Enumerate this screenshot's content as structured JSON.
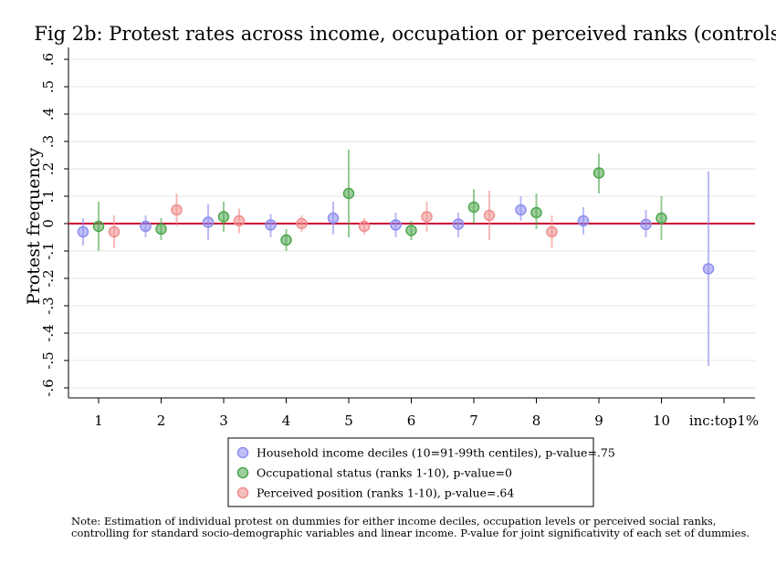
{
  "chart_data": {
    "type": "scatter",
    "title": "Fig 2b: Protest rates across income, occupation or perceived ranks (controls)",
    "ylabel": "Protest frequency",
    "xlabel": "",
    "ylim": [
      -0.6,
      0.6
    ],
    "y_ticks": [
      0.6,
      0.5,
      0.4,
      0.3,
      0.2,
      0.1,
      0,
      -0.1,
      -0.2,
      -0.3,
      -0.4,
      -0.5,
      -0.6
    ],
    "y_tick_labels": [
      ".6",
      ".5",
      ".4",
      ".3",
      ".2",
      ".1",
      "0",
      "-.1",
      "-.2",
      "-.3",
      "-.4",
      "-.5",
      "-.6"
    ],
    "categories": [
      "1",
      "2",
      "3",
      "4",
      "5",
      "6",
      "7",
      "8",
      "9",
      "10",
      "inc:top1%"
    ],
    "grid": true,
    "reference_line": {
      "y": 0,
      "color": "#cc0033"
    },
    "legend_position": "bottom",
    "series": [
      {
        "name": "Household income deciles (10=91-99th centiles), p-value=.75",
        "color": "#8c8cf0",
        "offset": -1,
        "points": [
          {
            "cat": 0,
            "y": -0.03,
            "lo": -0.08,
            "hi": 0.02
          },
          {
            "cat": 1,
            "y": -0.01,
            "lo": -0.05,
            "hi": 0.03
          },
          {
            "cat": 2,
            "y": 0.005,
            "lo": -0.06,
            "hi": 0.07
          },
          {
            "cat": 3,
            "y": -0.005,
            "lo": -0.05,
            "hi": 0.035
          },
          {
            "cat": 4,
            "y": 0.02,
            "lo": -0.04,
            "hi": 0.08
          },
          {
            "cat": 5,
            "y": -0.005,
            "lo": -0.05,
            "hi": 0.04
          },
          {
            "cat": 6,
            "y": -0.002,
            "lo": -0.05,
            "hi": 0.04
          },
          {
            "cat": 7,
            "y": 0.05,
            "lo": 0.01,
            "hi": 0.1
          },
          {
            "cat": 8,
            "y": 0.01,
            "lo": -0.04,
            "hi": 0.06
          },
          {
            "cat": 9,
            "y": -0.003,
            "lo": -0.05,
            "hi": 0.05
          },
          {
            "cat": 10,
            "y": -0.165,
            "lo": -0.52,
            "hi": 0.19
          }
        ]
      },
      {
        "name": "Occupational status (ranks 1-10), p-value=0",
        "color": "#4ca64c",
        "offset": 0,
        "points": [
          {
            "cat": 0,
            "y": -0.01,
            "lo": -0.1,
            "hi": 0.08
          },
          {
            "cat": 1,
            "y": -0.02,
            "lo": -0.06,
            "hi": 0.02
          },
          {
            "cat": 2,
            "y": 0.025,
            "lo": -0.03,
            "hi": 0.08
          },
          {
            "cat": 3,
            "y": -0.06,
            "lo": -0.1,
            "hi": -0.02
          },
          {
            "cat": 4,
            "y": 0.11,
            "lo": -0.05,
            "hi": 0.27
          },
          {
            "cat": 5,
            "y": -0.025,
            "lo": -0.06,
            "hi": 0.01
          },
          {
            "cat": 6,
            "y": 0.06,
            "lo": 0.0,
            "hi": 0.125
          },
          {
            "cat": 7,
            "y": 0.04,
            "lo": -0.02,
            "hi": 0.11
          },
          {
            "cat": 8,
            "y": 0.185,
            "lo": 0.11,
            "hi": 0.255
          },
          {
            "cat": 9,
            "y": 0.02,
            "lo": -0.06,
            "hi": 0.1
          }
        ]
      },
      {
        "name": "Perceived position (ranks 1-10), p-value=.64",
        "color": "#f08c8c",
        "offset": 1,
        "points": [
          {
            "cat": 0,
            "y": -0.03,
            "lo": -0.09,
            "hi": 0.03
          },
          {
            "cat": 1,
            "y": 0.05,
            "lo": -0.01,
            "hi": 0.11
          },
          {
            "cat": 2,
            "y": 0.01,
            "lo": -0.035,
            "hi": 0.055
          },
          {
            "cat": 3,
            "y": 0.0,
            "lo": -0.03,
            "hi": 0.03
          },
          {
            "cat": 4,
            "y": -0.01,
            "lo": -0.04,
            "hi": 0.02
          },
          {
            "cat": 5,
            "y": 0.025,
            "lo": -0.03,
            "hi": 0.08
          },
          {
            "cat": 6,
            "y": 0.03,
            "lo": -0.06,
            "hi": 0.12
          },
          {
            "cat": 7,
            "y": -0.03,
            "lo": -0.09,
            "hi": 0.03
          }
        ]
      }
    ],
    "note_lines": [
      "Note: Estimation of individual protest on dummies for either income deciles, occupation levels or perceived social ranks,",
      "controlling for standard socio-demographic variables and linear income. P-value for joint significativity of each set of dummies."
    ]
  }
}
